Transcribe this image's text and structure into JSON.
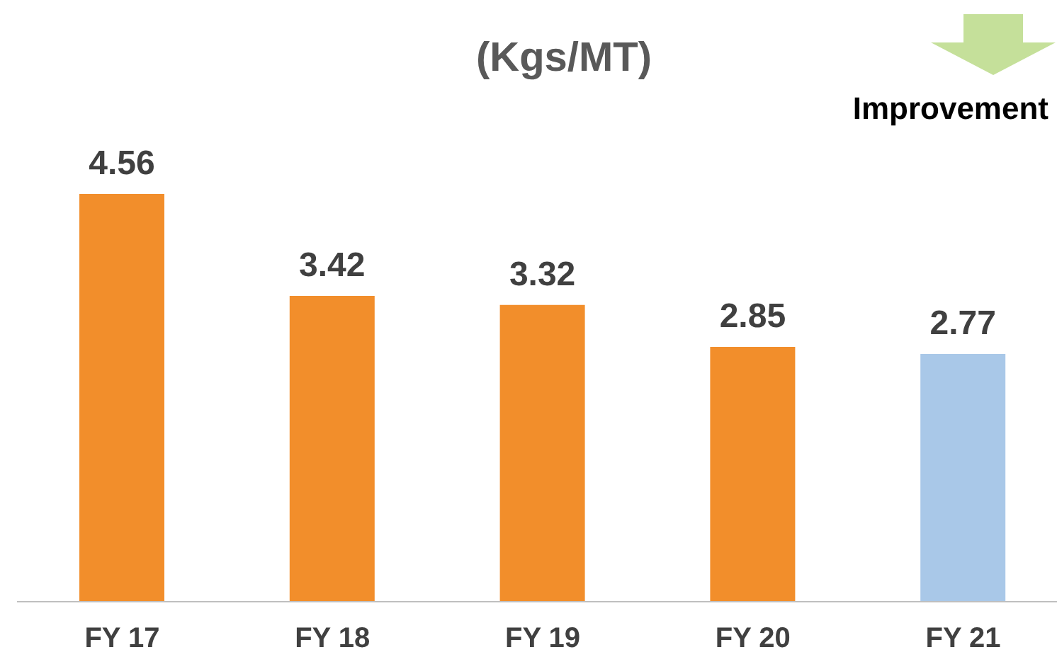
{
  "chart_data": {
    "type": "bar",
    "title": "(Kgs/MT)",
    "categories": [
      "FY 17",
      "FY 18",
      "FY 19",
      "FY 20",
      "FY 21"
    ],
    "values": [
      4.56,
      3.42,
      3.32,
      2.85,
      2.77
    ],
    "colors": [
      "#f28e2b",
      "#f28e2b",
      "#f28e2b",
      "#f28e2b",
      "#a9c8e8"
    ],
    "data_labels": true,
    "annotations": [
      "Improvement"
    ]
  }
}
